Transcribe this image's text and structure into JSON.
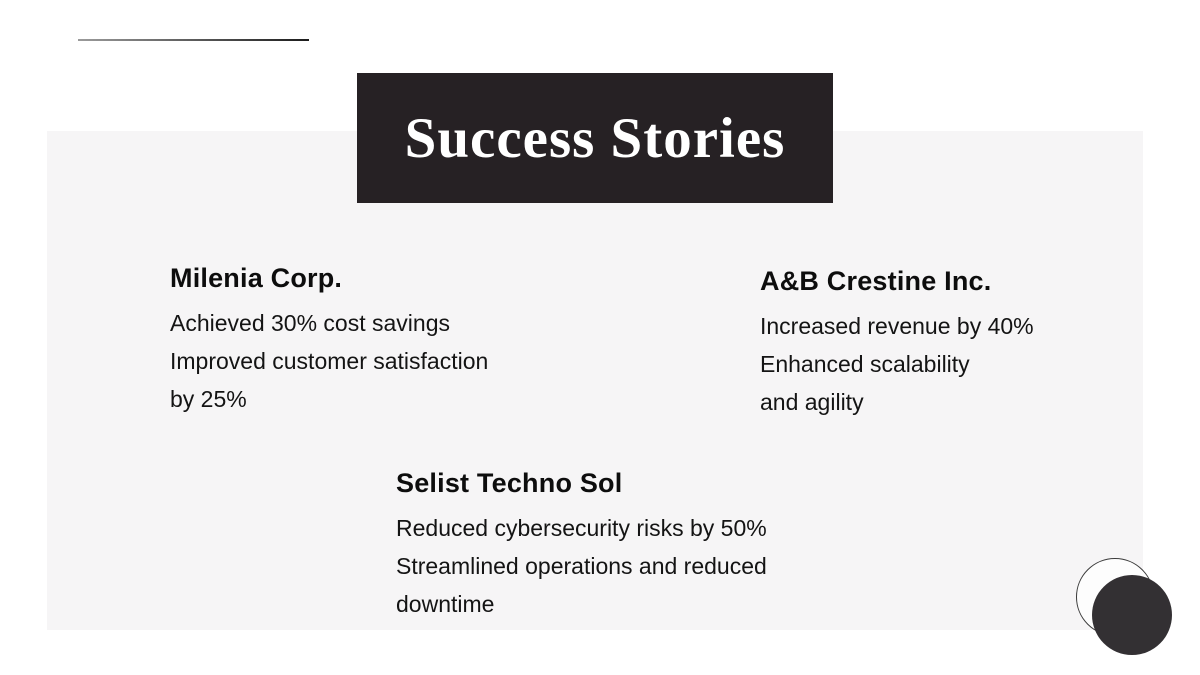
{
  "slide": {
    "title": "Success Stories",
    "companies": [
      {
        "name": "Milenia Corp.",
        "lines": [
          "Achieved 30% cost savings",
          "Improved customer satisfaction",
          "by 25%"
        ]
      },
      {
        "name": "A&B Crestine Inc.",
        "lines": [
          "Increased revenue by 40%",
          "Enhanced scalability",
          "and agility"
        ]
      },
      {
        "name": "Selist Techno Sol",
        "lines": [
          "Reduced cybersecurity risks by 50%",
          "Streamlined operations and reduced",
          "downtime"
        ]
      }
    ],
    "colors": {
      "banner_bg": "#262124",
      "banner_text": "#ffffff",
      "panel_bg": "#f6f5f6",
      "heading_text": "#0d0d0d",
      "body_text": "#141414",
      "circle_fill": "#333033",
      "circle_outline": "#3a3a3a",
      "line_start": "#9b9b9b",
      "line_end": "#1c1c1c"
    }
  }
}
